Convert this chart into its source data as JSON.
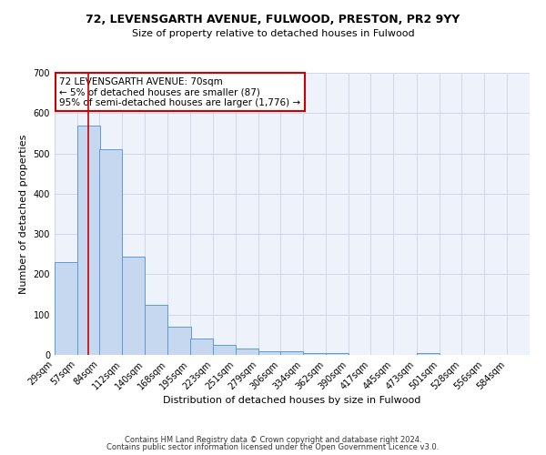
{
  "title1": "72, LEVENSGARTH AVENUE, FULWOOD, PRESTON, PR2 9YY",
  "title2": "Size of property relative to detached houses in Fulwood",
  "xlabel": "Distribution of detached houses by size in Fulwood",
  "ylabel": "Number of detached properties",
  "bin_labels": [
    "29sqm",
    "57sqm",
    "84sqm",
    "112sqm",
    "140sqm",
    "168sqm",
    "195sqm",
    "223sqm",
    "251sqm",
    "279sqm",
    "306sqm",
    "334sqm",
    "362sqm",
    "390sqm",
    "417sqm",
    "445sqm",
    "473sqm",
    "501sqm",
    "528sqm",
    "556sqm",
    "584sqm"
  ],
  "bin_edges": [
    29,
    57,
    84,
    112,
    140,
    168,
    195,
    223,
    251,
    279,
    306,
    334,
    362,
    390,
    417,
    445,
    473,
    501,
    528,
    556,
    584
  ],
  "bar_heights": [
    230,
    570,
    510,
    245,
    125,
    70,
    40,
    25,
    15,
    10,
    8,
    5,
    5,
    0,
    0,
    0,
    5,
    0,
    0,
    0
  ],
  "bar_color": "#c5d8f0",
  "bar_edge_color": "#5b9bd5",
  "property_line_x": 70,
  "property_line_color": "#cc0000",
  "annotation_line1": "72 LEVENSGARTH AVENUE: 70sqm",
  "annotation_line2": "← 5% of detached houses are smaller (87)",
  "annotation_line3": "95% of semi-detached houses are larger (1,776) →",
  "annotation_box_color": "#cc0000",
  "ylim": [
    0,
    700
  ],
  "yticks": [
    0,
    100,
    200,
    300,
    400,
    500,
    600,
    700
  ],
  "grid_color": "#d0d8e8",
  "background_color": "#eef2fa",
  "footer1": "Contains HM Land Registry data © Crown copyright and database right 2024.",
  "footer2": "Contains public sector information licensed under the Open Government Licence v3.0.",
  "title1_fontsize": 9,
  "title2_fontsize": 8,
  "axis_label_fontsize": 8,
  "tick_fontsize": 7,
  "annotation_fontsize": 7.5,
  "footer_fontsize": 6
}
